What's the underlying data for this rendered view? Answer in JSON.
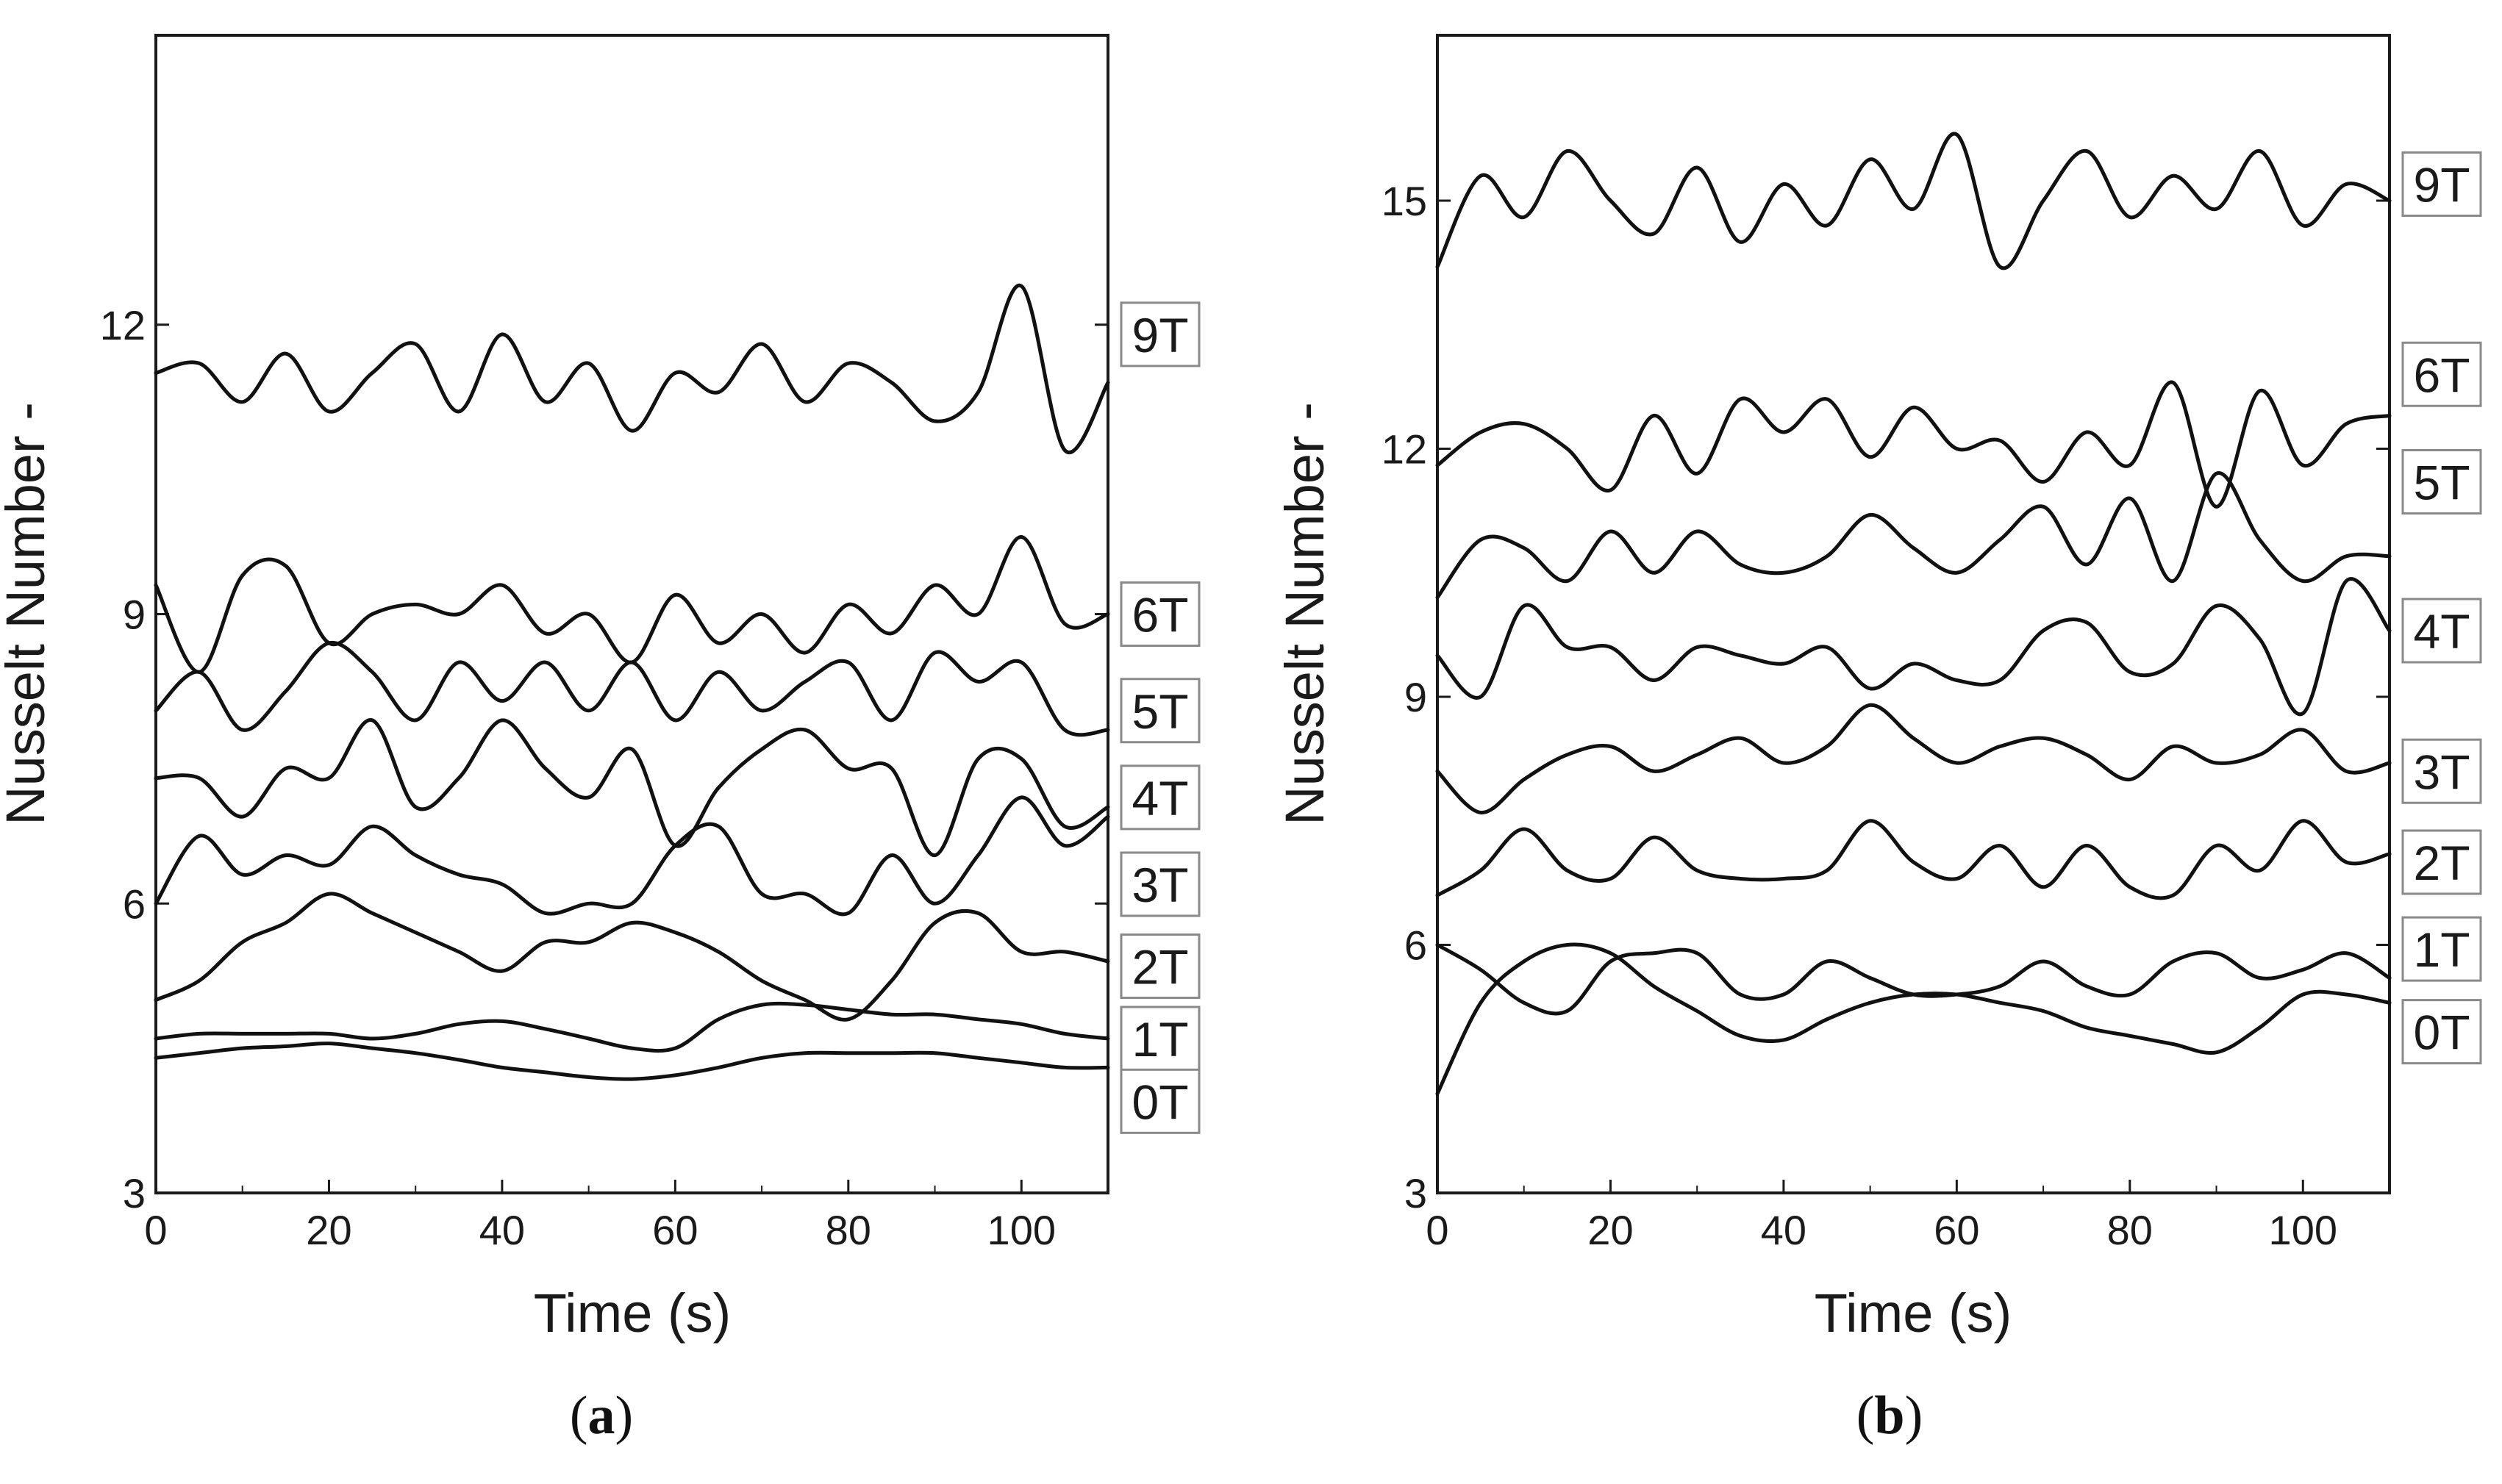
{
  "chart_data": [
    {
      "type": "line",
      "panel_label": "a",
      "xlabel": "Time (s)",
      "ylabel": "Nusselt Number -",
      "xlim": [
        0,
        110
      ],
      "ylim": [
        3,
        15
      ],
      "xticks": [
        0,
        20,
        40,
        60,
        80,
        100
      ],
      "yticks": [
        3,
        6,
        9,
        12
      ],
      "grid": false,
      "x": [
        0,
        5,
        10,
        15,
        20,
        25,
        30,
        35,
        40,
        45,
        50,
        55,
        60,
        65,
        70,
        75,
        80,
        85,
        90,
        95,
        100,
        105,
        110
      ],
      "series": [
        {
          "name": "9T",
          "label_y": 11.9,
          "values": [
            11.5,
            11.6,
            11.2,
            11.7,
            11.1,
            11.5,
            11.8,
            11.1,
            11.9,
            11.2,
            11.6,
            10.9,
            11.5,
            11.3,
            11.8,
            11.2,
            11.6,
            11.4,
            11.0,
            11.3,
            12.4,
            10.7,
            11.4
          ]
        },
        {
          "name": "6T",
          "label_y": 9.0,
          "values": [
            9.3,
            8.4,
            9.4,
            9.5,
            8.7,
            9.0,
            9.1,
            9.0,
            9.3,
            8.8,
            9.0,
            8.5,
            9.2,
            8.7,
            9.0,
            8.6,
            9.1,
            8.8,
            9.3,
            9.0,
            9.8,
            8.9,
            9.0
          ]
        },
        {
          "name": "5T",
          "label_y": 8.0,
          "values": [
            8.0,
            8.4,
            7.8,
            8.2,
            8.7,
            8.4,
            7.9,
            8.5,
            8.1,
            8.5,
            8.0,
            8.5,
            7.9,
            8.4,
            8.0,
            8.3,
            8.5,
            7.9,
            8.6,
            8.3,
            8.5,
            7.8,
            7.8
          ]
        },
        {
          "name": "4T",
          "label_y": 7.1,
          "values": [
            7.3,
            7.3,
            6.9,
            7.4,
            7.3,
            7.9,
            7.0,
            7.3,
            7.9,
            7.4,
            7.1,
            7.6,
            6.6,
            7.2,
            7.6,
            7.8,
            7.4,
            7.4,
            6.5,
            7.5,
            7.5,
            6.8,
            7.0
          ]
        },
        {
          "name": "3T",
          "label_y": 6.2,
          "values": [
            6.0,
            6.7,
            6.3,
            6.5,
            6.4,
            6.8,
            6.5,
            6.3,
            6.2,
            5.9,
            6.0,
            6.0,
            6.6,
            6.8,
            6.1,
            6.1,
            5.9,
            6.5,
            6.0,
            6.5,
            7.1,
            6.6,
            6.9
          ]
        },
        {
          "name": "2T",
          "label_y": 5.35,
          "values": [
            5.0,
            5.2,
            5.6,
            5.8,
            6.1,
            5.9,
            5.7,
            5.5,
            5.3,
            5.6,
            5.6,
            5.8,
            5.7,
            5.5,
            5.2,
            5.0,
            4.8,
            5.2,
            5.8,
            5.9,
            5.5,
            5.5,
            5.4
          ]
        },
        {
          "name": "1T",
          "label_y": 4.6,
          "values": [
            4.6,
            4.65,
            4.65,
            4.65,
            4.65,
            4.6,
            4.65,
            4.75,
            4.78,
            4.7,
            4.6,
            4.5,
            4.5,
            4.8,
            4.95,
            4.95,
            4.9,
            4.85,
            4.85,
            4.8,
            4.75,
            4.65,
            4.6
          ]
        },
        {
          "name": "0T",
          "label_y": 3.95,
          "values": [
            4.4,
            4.45,
            4.5,
            4.52,
            4.55,
            4.5,
            4.45,
            4.38,
            4.3,
            4.25,
            4.2,
            4.18,
            4.22,
            4.3,
            4.4,
            4.45,
            4.45,
            4.45,
            4.45,
            4.4,
            4.35,
            4.3,
            4.3
          ]
        }
      ]
    },
    {
      "type": "line",
      "panel_label": "b",
      "xlabel": "Time (s)",
      "ylabel": "Nusselt Number -",
      "xlim": [
        0,
        110
      ],
      "ylim": [
        3,
        17
      ],
      "xticks": [
        0,
        20,
        40,
        60,
        80,
        100
      ],
      "yticks": [
        3,
        6,
        9,
        12,
        15
      ],
      "grid": false,
      "x": [
        0,
        5,
        10,
        15,
        20,
        25,
        30,
        35,
        40,
        45,
        50,
        55,
        60,
        65,
        70,
        75,
        80,
        85,
        90,
        95,
        100,
        105,
        110
      ],
      "series": [
        {
          "name": "9T",
          "label_y": 15.2,
          "values": [
            14.2,
            15.3,
            14.8,
            15.6,
            15.0,
            14.6,
            15.4,
            14.5,
            15.2,
            14.7,
            15.5,
            14.9,
            15.8,
            14.2,
            15.0,
            15.6,
            14.8,
            15.3,
            14.9,
            15.6,
            14.7,
            15.2,
            15.0
          ]
        },
        {
          "name": "6T",
          "label_y": 12.9,
          "values": [
            11.8,
            12.2,
            12.3,
            12.0,
            11.5,
            12.4,
            11.7,
            12.6,
            12.2,
            12.6,
            11.9,
            12.5,
            12.0,
            12.1,
            11.6,
            12.2,
            11.8,
            12.8,
            11.3,
            12.7,
            11.8,
            12.3,
            12.4
          ]
        },
        {
          "name": "5T",
          "label_y": 11.6,
          "values": [
            10.2,
            10.9,
            10.8,
            10.4,
            11.0,
            10.5,
            11.0,
            10.6,
            10.5,
            10.7,
            11.2,
            10.8,
            10.5,
            10.9,
            11.3,
            10.6,
            11.4,
            10.4,
            11.7,
            10.9,
            10.4,
            10.7,
            10.7
          ]
        },
        {
          "name": "4T",
          "label_y": 9.8,
          "values": [
            9.5,
            9.0,
            10.1,
            9.6,
            9.6,
            9.2,
            9.6,
            9.5,
            9.4,
            9.6,
            9.1,
            9.4,
            9.2,
            9.2,
            9.8,
            9.9,
            9.3,
            9.4,
            10.1,
            9.7,
            8.8,
            10.4,
            9.8
          ]
        },
        {
          "name": "3T",
          "label_y": 8.1,
          "values": [
            8.1,
            7.6,
            8.0,
            8.3,
            8.4,
            8.1,
            8.3,
            8.5,
            8.2,
            8.4,
            8.9,
            8.5,
            8.2,
            8.4,
            8.5,
            8.3,
            8.0,
            8.4,
            8.2,
            8.3,
            8.6,
            8.1,
            8.2
          ]
        },
        {
          "name": "2T",
          "label_y": 7.0,
          "values": [
            6.6,
            6.9,
            7.4,
            6.9,
            6.8,
            7.3,
            6.9,
            6.8,
            6.8,
            6.9,
            7.5,
            7.0,
            6.8,
            7.2,
            6.7,
            7.2,
            6.7,
            6.6,
            7.2,
            6.9,
            7.5,
            7.0,
            7.1
          ]
        },
        {
          "name": "1T",
          "label_y": 5.95,
          "values": [
            6.0,
            5.7,
            5.3,
            5.2,
            5.8,
            5.9,
            5.9,
            5.4,
            5.4,
            5.8,
            5.6,
            5.4,
            5.4,
            5.5,
            5.8,
            5.5,
            5.4,
            5.8,
            5.9,
            5.6,
            5.7,
            5.9,
            5.6
          ]
        },
        {
          "name": "0T",
          "label_y": 4.95,
          "values": [
            4.2,
            5.3,
            5.8,
            6.0,
            5.9,
            5.5,
            5.2,
            4.9,
            4.85,
            5.1,
            5.3,
            5.4,
            5.4,
            5.3,
            5.2,
            5.0,
            4.9,
            4.8,
            4.7,
            5.0,
            5.4,
            5.4,
            5.3
          ]
        }
      ]
    }
  ]
}
